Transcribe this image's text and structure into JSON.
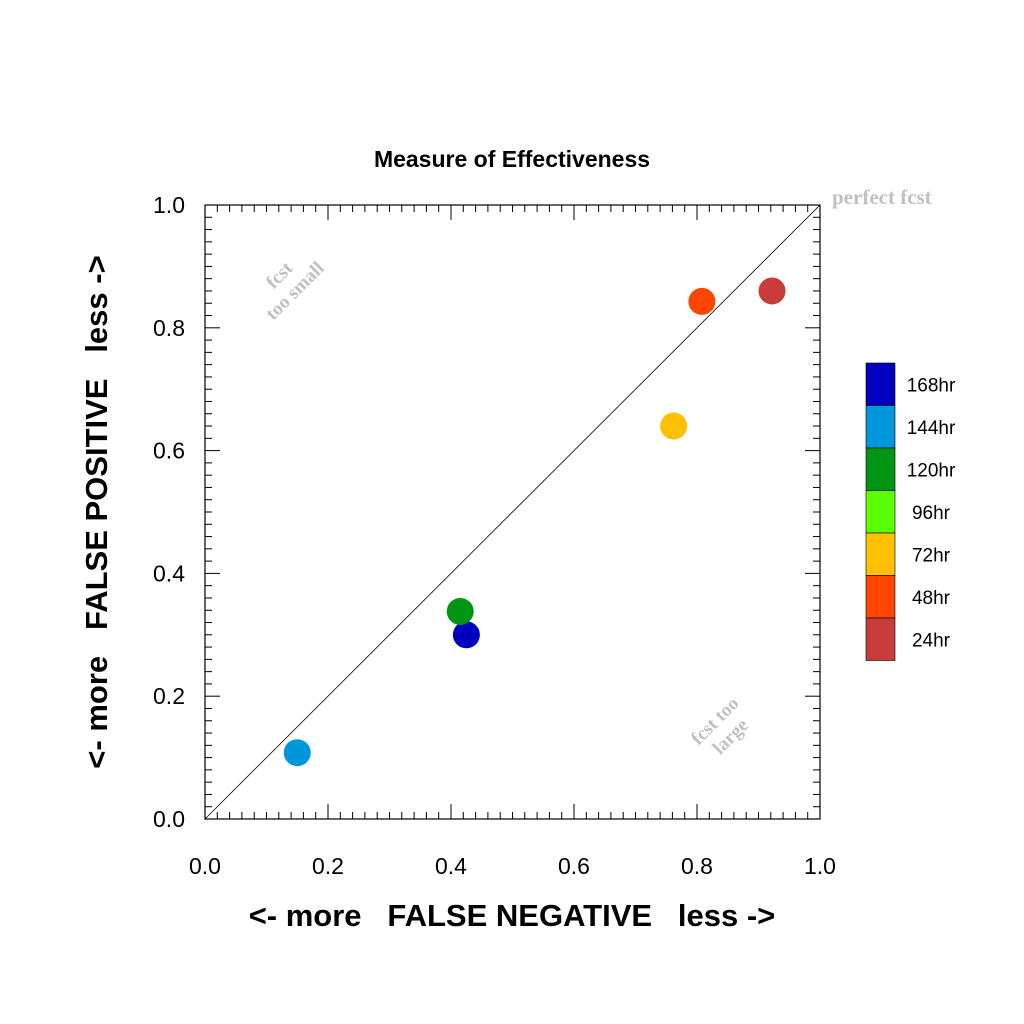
{
  "chart_data": {
    "type": "scatter",
    "title": "Measure of Effectiveness",
    "xlabel": "<- more   FALSE NEGATIVE   less ->",
    "ylabel": "<- more   FALSE POSITIVE   less ->",
    "xlim": [
      0.0,
      1.0
    ],
    "ylim": [
      0.0,
      1.0
    ],
    "xticks": [
      "0.0",
      "0.2",
      "0.4",
      "0.6",
      "0.8",
      "1.0"
    ],
    "yticks": [
      "0.0",
      "0.2",
      "0.4",
      "0.6",
      "0.8",
      "1.0"
    ],
    "grid": false,
    "reference_line": "diagonal y = x",
    "annotations": {
      "perfect": "perfect fcst",
      "small_line1": "fcst",
      "small_line2": "too small",
      "large_line1": "fcst too",
      "large_line2": "large"
    },
    "legend_position": "right",
    "series": [
      {
        "name": "168hr",
        "color": "#0000C0",
        "x": 0.425,
        "y": 0.3
      },
      {
        "name": "144hr",
        "color": "#0096DC",
        "x": 0.15,
        "y": 0.108
      },
      {
        "name": "120hr",
        "color": "#009614",
        "x": 0.415,
        "y": 0.338
      },
      {
        "name": "96hr",
        "color": "#5AFF00",
        "x": null,
        "y": null
      },
      {
        "name": "72hr",
        "color": "#FFC000",
        "x": 0.762,
        "y": 0.64
      },
      {
        "name": "48hr",
        "color": "#FF4600",
        "x": 0.808,
        "y": 0.843
      },
      {
        "name": "24hr",
        "color": "#C83C3C",
        "x": 0.922,
        "y": 0.86
      }
    ]
  }
}
